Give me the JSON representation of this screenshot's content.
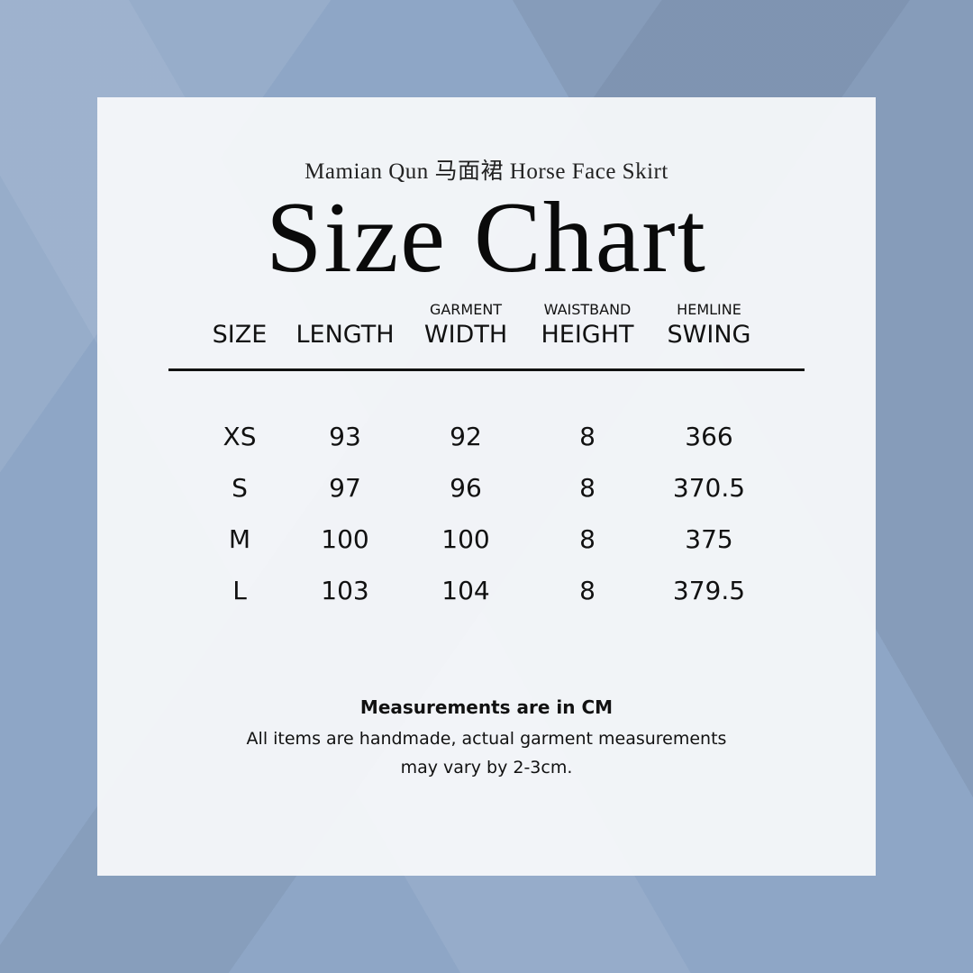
{
  "subtitle": "Mamian Qun 马面裙 Horse Face Skirt",
  "title": "Size Chart",
  "colors": {
    "background": "#8ea6c6",
    "panel": "#f7f8fa",
    "text": "#111111"
  },
  "table": {
    "columns": [
      {
        "top": "",
        "label": "SIZE"
      },
      {
        "top": "",
        "label": "LENGTH"
      },
      {
        "top": "GARMENT",
        "label": "WIDTH"
      },
      {
        "top": "WAISTBAND",
        "label": "HEIGHT"
      },
      {
        "top": "HEMLINE",
        "label": "SWING"
      }
    ],
    "rows": [
      [
        "XS",
        "93",
        "92",
        "8",
        "366"
      ],
      [
        "S",
        "97",
        "96",
        "8",
        "370.5"
      ],
      [
        "M",
        "100",
        "100",
        "8",
        "375"
      ],
      [
        "L",
        "103",
        "104",
        "8",
        "379.5"
      ]
    ]
  },
  "footer": {
    "bold": "Measurements are in CM",
    "line1": "All items are handmade, actual garment measurements",
    "line2": "may vary by 2-3cm."
  }
}
